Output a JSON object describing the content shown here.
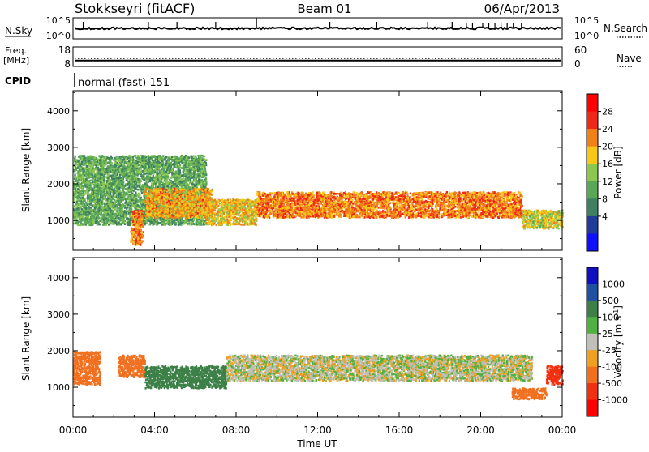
{
  "header": {
    "station": "Stokkseyri (fitACF)",
    "beam": "Beam 01",
    "date": "06/Apr/2013"
  },
  "noise_panel": {
    "left_label": "N.Sky",
    "left_ticks": [
      "10^5",
      "10^0"
    ],
    "right_ticks": [
      "10^5",
      "10^0"
    ],
    "right_label": "N.Search"
  },
  "freq_panel": {
    "left_label_line1": "Freq.",
    "left_label_line2": "[MHz]",
    "left_ticks": [
      "18",
      "8"
    ],
    "right_ticks": [
      "60",
      "0"
    ],
    "right_label": "Nave",
    "freq_value": 11.0,
    "nave_value": 25
  },
  "cpid_panel": {
    "label": "CPID",
    "text": "normal (fast) 151"
  },
  "axes": {
    "y_label": "Slant Range [km]",
    "y_ticks": [
      "4000",
      "3000",
      "2000",
      "1000"
    ],
    "y_range": [
      180,
      4550
    ],
    "x_label": "Time UT",
    "x_ticks": [
      "00:00",
      "04:00",
      "08:00",
      "12:00",
      "16:00",
      "20:00",
      "00:00"
    ],
    "x_range_hours": [
      0,
      24
    ]
  },
  "power_colorbar": {
    "label": "Power [dB]",
    "ticks": [
      "28",
      "24",
      "20",
      "16",
      "12",
      "8",
      "4"
    ],
    "colors": [
      "#1010ff",
      "#203c98",
      "#3f8060",
      "#58a858",
      "#8cc850",
      "#f8c818",
      "#f08018",
      "#f02818",
      "#ff0000"
    ]
  },
  "velocity_colorbar": {
    "label": "Velocity [m s^-1]",
    "ticks": [
      "1000",
      "500",
      "100",
      "25",
      "-25",
      "-100",
      "-500",
      "-1000"
    ],
    "colors": [
      "#1010c0",
      "#2050a0",
      "#3c8048",
      "#50b040",
      "#c0c0b8",
      "#f0a020",
      "#f07020",
      "#f03010",
      "#ff0000"
    ]
  },
  "chart_data": [
    {
      "type": "heatmap",
      "title": "Power",
      "xlabel": "Time UT",
      "ylabel": "Slant Range [km]",
      "value_label": "Power [dB]",
      "xlim_hours": [
        0,
        24
      ],
      "ylim_km": [
        180,
        4550
      ],
      "scatter_regions": [
        {
          "t_start": 0.0,
          "t_end": 6.5,
          "range_low_km": 900,
          "range_high_km": 2800,
          "power_db": 14
        },
        {
          "t_start": 2.8,
          "t_end": 3.4,
          "range_low_km": 350,
          "range_high_km": 1300,
          "power_db": 26
        },
        {
          "t_start": 3.5,
          "t_end": 6.8,
          "range_low_km": 1100,
          "range_high_km": 1900,
          "power_db": 24
        },
        {
          "t_start": 6.5,
          "t_end": 9.0,
          "range_low_km": 900,
          "range_high_km": 1600,
          "power_db": 22
        },
        {
          "t_start": 9.0,
          "t_end": 22.0,
          "range_low_km": 1100,
          "range_high_km": 1800,
          "power_db": 26
        },
        {
          "t_start": 22.0,
          "t_end": 24.0,
          "range_low_km": 800,
          "range_high_km": 1300,
          "power_db": 20
        }
      ]
    },
    {
      "type": "heatmap",
      "title": "Velocity",
      "xlabel": "Time UT",
      "ylabel": "Slant Range [km]",
      "value_label": "Velocity [m s^-1]",
      "xlim_hours": [
        0,
        24
      ],
      "ylim_km": [
        180,
        4550
      ],
      "scatter_regions": [
        {
          "t_start": 0.0,
          "t_end": 1.3,
          "range_low_km": 1100,
          "range_high_km": 2000,
          "velocity_ms": -400
        },
        {
          "t_start": 2.2,
          "t_end": 3.5,
          "range_low_km": 1300,
          "range_high_km": 1900,
          "velocity_ms": -300
        },
        {
          "t_start": 3.5,
          "t_end": 7.5,
          "range_low_km": 1000,
          "range_high_km": 1600,
          "velocity_ms": 200
        },
        {
          "t_start": 7.5,
          "t_end": 22.5,
          "range_low_km": 1200,
          "range_high_km": 1900,
          "velocity_ms": 0
        },
        {
          "t_start": 21.5,
          "t_end": 23.2,
          "range_low_km": 700,
          "range_high_km": 1000,
          "velocity_ms": -400
        },
        {
          "t_start": 23.2,
          "t_end": 24.0,
          "range_low_km": 1100,
          "range_high_km": 1600,
          "velocity_ms": -600
        }
      ]
    }
  ]
}
